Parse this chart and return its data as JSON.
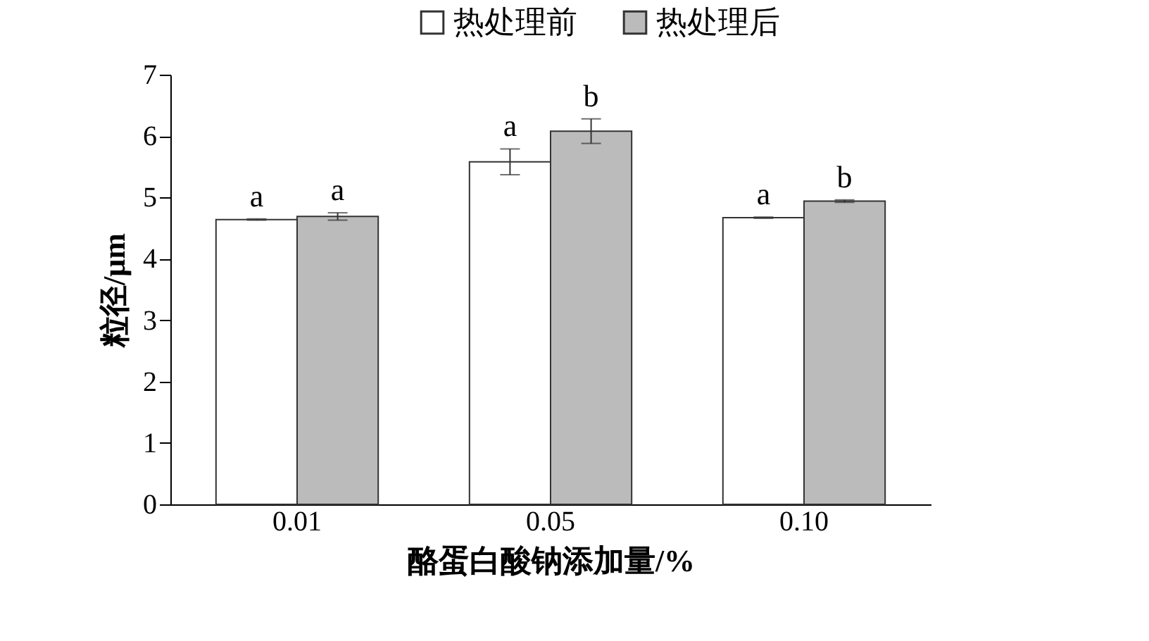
{
  "chart_data": {
    "type": "bar",
    "xlabel": "酪蛋白酸钠添加量/%",
    "ylabel": "粒径/μm",
    "categories": [
      "0.01",
      "0.05",
      "0.10"
    ],
    "series": [
      {
        "name": "热处理前",
        "color": "#ffffff",
        "values": [
          4.64,
          5.58,
          4.67
        ],
        "errors": [
          0.01,
          0.21,
          0.01
        ],
        "value_labels": [
          "a",
          "a",
          "a"
        ]
      },
      {
        "name": "热处理后",
        "color": "#bcbbbc",
        "values": [
          4.69,
          6.08,
          4.94
        ],
        "errors": [
          0.06,
          0.2,
          0.02
        ],
        "value_labels": [
          "a",
          "b",
          "b"
        ]
      }
    ],
    "ylim": [
      0,
      7
    ],
    "yticks": [
      0,
      1,
      2,
      3,
      4,
      5,
      6,
      7
    ],
    "grid": false,
    "legend": "top"
  }
}
